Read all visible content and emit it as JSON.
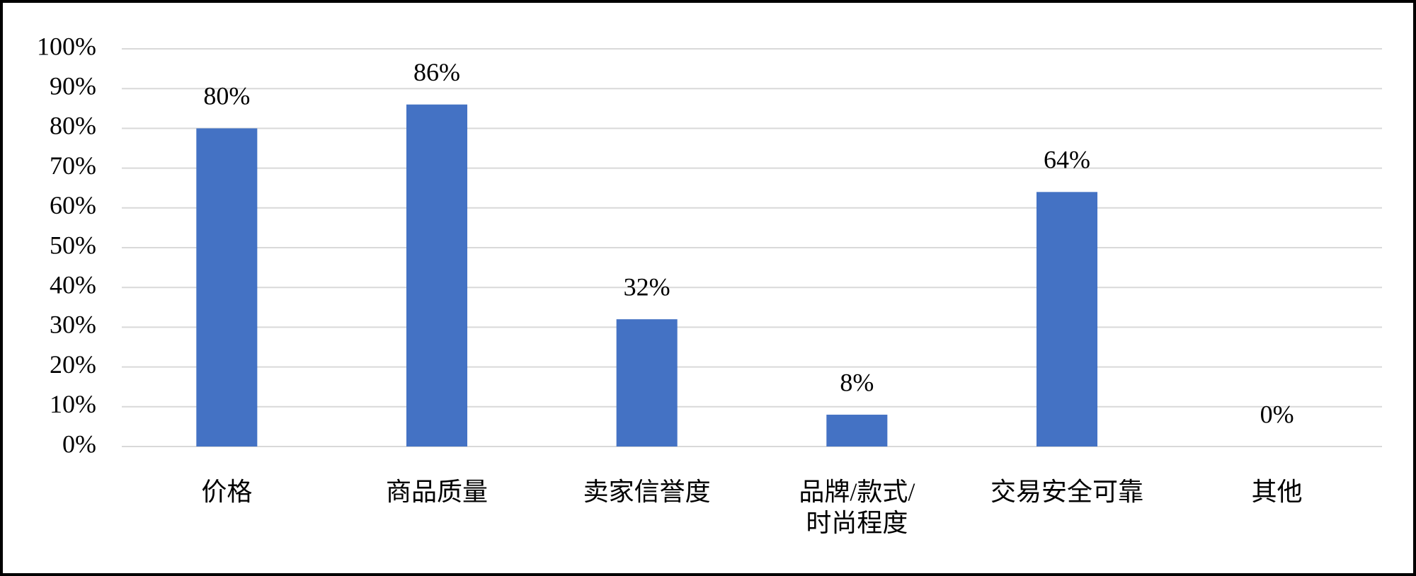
{
  "chart_data": {
    "type": "bar",
    "categories": [
      "价格",
      "商品质量",
      "卖家信誉度",
      "品牌/款式/\n时尚程度",
      "交易安全可靠",
      "其他"
    ],
    "values": [
      80,
      86,
      32,
      8,
      64,
      0
    ],
    "value_labels": [
      "80%",
      "86%",
      "32%",
      "8%",
      "64%",
      "0%"
    ],
    "color": "#4472c4",
    "ylim": [
      0,
      100
    ],
    "yticks": [
      {
        "value": 0,
        "label": "0%"
      },
      {
        "value": 10,
        "label": "10%"
      },
      {
        "value": 20,
        "label": "20%"
      },
      {
        "value": 30,
        "label": "30%"
      },
      {
        "value": 40,
        "label": "40%"
      },
      {
        "value": 50,
        "label": "50%"
      },
      {
        "value": 60,
        "label": "60%"
      },
      {
        "value": 70,
        "label": "70%"
      },
      {
        "value": 80,
        "label": "80%"
      },
      {
        "value": 90,
        "label": "90%"
      },
      {
        "value": 100,
        "label": "100%"
      }
    ],
    "grid": true
  }
}
